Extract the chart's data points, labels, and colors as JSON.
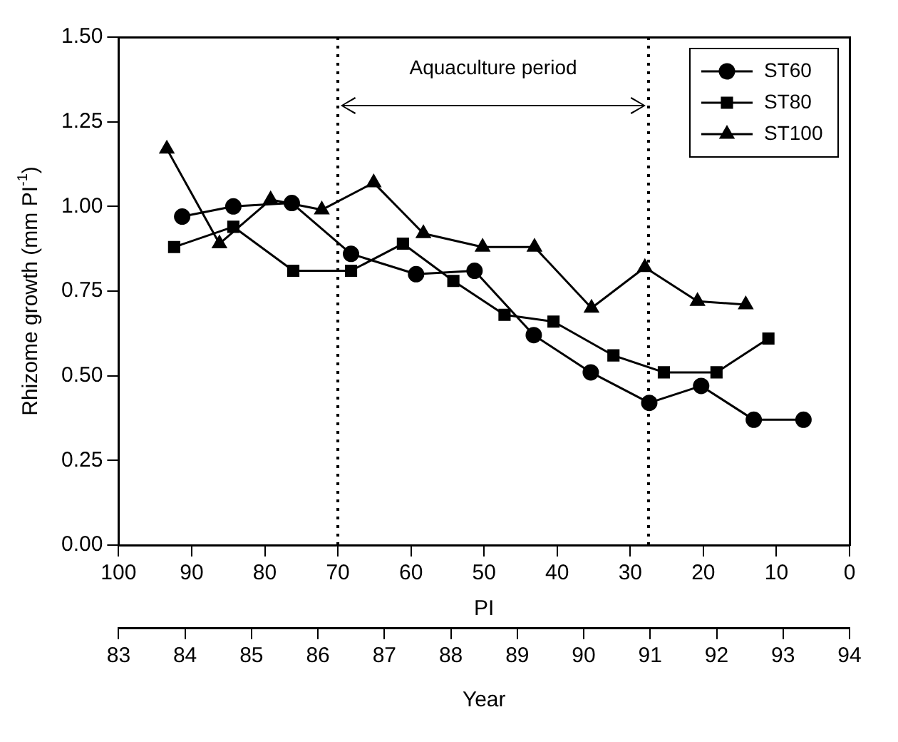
{
  "chart_data": {
    "type": "line",
    "xlabel": "PI",
    "ylabel": "Rhizome growth (mm PI$^{-1}$)",
    "x2label": "Year",
    "xlim": [
      100,
      0
    ],
    "xticks": [
      100,
      90,
      80,
      70,
      60,
      50,
      40,
      30,
      20,
      10,
      0
    ],
    "x2lim": [
      83,
      94
    ],
    "x2ticks": [
      83,
      84,
      85,
      86,
      87,
      88,
      89,
      90,
      91,
      92,
      93,
      94
    ],
    "ylim": [
      0,
      1.5
    ],
    "yticks": [
      {
        "value": 0,
        "label": "0.00"
      },
      {
        "value": 0.25,
        "label": "0.25"
      },
      {
        "value": 0.5,
        "label": "0.50"
      },
      {
        "value": 0.75,
        "label": "0.75"
      },
      {
        "value": 1,
        "label": "1.00"
      },
      {
        "value": 1.25,
        "label": "1.25"
      },
      {
        "value": 1.5,
        "label": "1.50"
      }
    ],
    "grid": false,
    "legend": "top right",
    "line_style": "solid",
    "ref_lines": [
      {
        "axis": "x",
        "value": 70,
        "line_style": "dotted",
        "color": "#000000"
      },
      {
        "axis": "x",
        "value": 27.5,
        "line_style": "dotted",
        "color": "#000000"
      }
    ],
    "annotations": [
      "Aquaculture period"
    ],
    "series": [
      {
        "name": "ST60",
        "color": "#000000",
        "marker": "circle",
        "x": [
          91.3,
          84.3,
          76.3,
          68.2,
          59.3,
          51.3,
          43.2,
          35.4,
          27.4,
          20.3,
          13.1,
          6.3
        ],
        "values": [
          0.97,
          1.0,
          1.01,
          0.86,
          0.8,
          0.81,
          0.62,
          0.51,
          0.42,
          0.47,
          0.37,
          0.37
        ]
      },
      {
        "name": "ST80",
        "color": "#000000",
        "marker": "square",
        "x": [
          92.4,
          84.3,
          76.1,
          68.2,
          61.1,
          54.2,
          47.2,
          40.5,
          32.3,
          25.4,
          18.2,
          11.1
        ],
        "values": [
          0.88,
          0.94,
          0.81,
          0.81,
          0.89,
          0.78,
          0.68,
          0.66,
          0.56,
          0.51,
          0.51,
          0.61
        ]
      },
      {
        "name": "ST100",
        "color": "#000000",
        "marker": "triangle",
        "x": [
          93.4,
          86.2,
          79.2,
          72.2,
          65.1,
          58.3,
          50.2,
          43.1,
          35.3,
          28.0,
          20.8,
          14.2
        ],
        "values": [
          1.17,
          0.89,
          1.02,
          0.99,
          1.07,
          0.92,
          0.88,
          0.88,
          0.7,
          0.82,
          0.72,
          0.71
        ]
      }
    ]
  }
}
